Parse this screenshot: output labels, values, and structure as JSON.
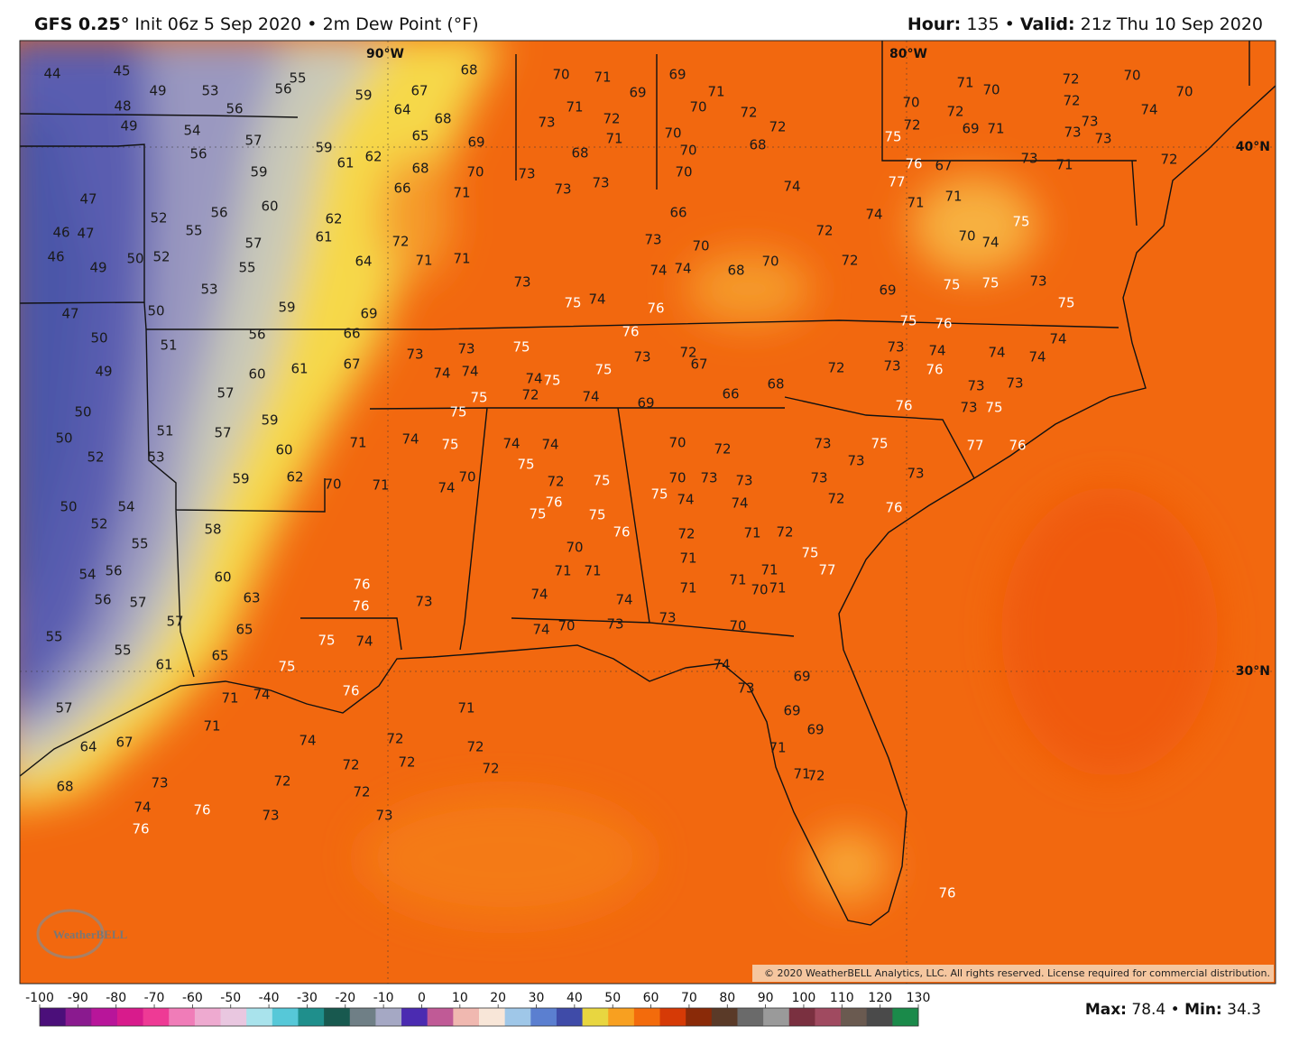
{
  "header": {
    "model": "GFS 0.25°",
    "init": "Init 06z 5 Sep 2020",
    "separator": "•",
    "field": "2m Dew Point (°F)",
    "hour_label": "Hour:",
    "hour": "135",
    "valid_label": "Valid:",
    "valid": "21z Thu 10 Sep 2020"
  },
  "map": {
    "lon_labels": [
      "90°W",
      "80°W"
    ],
    "lat_labels": [
      "40°N",
      "30°N"
    ],
    "logo": "WeatherBELL",
    "copyright": "© 2020 WeatherBELL Analytics, LLC. All rights reserved. License required for commercial distribution.",
    "stations": {
      "west": [
        44,
        45,
        49,
        53,
        48,
        49,
        54,
        56,
        57,
        56,
        59,
        47,
        52,
        56,
        60,
        46,
        47,
        55,
        57,
        46,
        49,
        50,
        52,
        55,
        53,
        47,
        50,
        59,
        50,
        51,
        56,
        49,
        60,
        61,
        57,
        50,
        51,
        57,
        59,
        50,
        60,
        52,
        53,
        59,
        62,
        50,
        54,
        52,
        58,
        55,
        54,
        56,
        60,
        56,
        57,
        63,
        57,
        65,
        55,
        55,
        61,
        65,
        57,
        67,
        64,
        68
      ],
      "midwest": [
        55,
        56,
        59,
        59,
        61,
        62,
        62,
        61,
        64,
        67,
        64,
        68,
        65,
        68,
        69,
        68,
        70,
        66,
        71,
        72,
        71,
        71,
        69,
        66,
        67,
        73,
        73,
        74,
        74,
        75,
        72,
        70,
        71,
        69,
        71,
        73,
        72,
        71,
        68,
        73,
        73,
        73,
        69,
        71,
        70,
        72,
        70,
        72,
        70,
        68,
        70,
        66,
        73,
        70,
        74,
        74,
        68,
        70,
        73,
        75,
        74,
        76,
        76,
        73,
        75,
        72,
        67,
        66,
        68,
        69,
        74,
        75,
        74,
        75,
        75,
        75,
        74,
        74,
        70,
        71,
        71,
        70
      ],
      "southeast": [
        74,
        74,
        75,
        72,
        75,
        76,
        75,
        75,
        76,
        70,
        71,
        71,
        74,
        74,
        70,
        72,
        70,
        73,
        73,
        75,
        74,
        74,
        72,
        71,
        72,
        71,
        71,
        71,
        71,
        70,
        71,
        75,
        77,
        73,
        73,
        75,
        73,
        72,
        73,
        76,
        76,
        77,
        76,
        73,
        74,
        74,
        74,
        73,
        76,
        73,
        73,
        73,
        75,
        74,
        72,
        75,
        76,
        75,
        75,
        73,
        75,
        69,
        70,
        74,
        75,
        72,
        72,
        74,
        74,
        71,
        77,
        71
      ],
      "northeast": [
        71,
        70,
        72,
        70,
        72,
        72,
        69,
        71,
        73,
        73,
        73,
        74,
        70,
        72,
        71,
        73,
        67,
        76,
        72,
        75,
        70
      ],
      "gulf": [
        75,
        74,
        76,
        76,
        73,
        74,
        70,
        73,
        73,
        70,
        74,
        73,
        69,
        69,
        69,
        71,
        71,
        72,
        76,
        75,
        71,
        71,
        74,
        74,
        72,
        72,
        72,
        72,
        71,
        72,
        72,
        72,
        73,
        73,
        76,
        73,
        74,
        76,
        76
      ]
    }
  },
  "colorbar": {
    "ticks": [
      -100,
      -90,
      -80,
      -70,
      -60,
      -50,
      -40,
      -30,
      -20,
      -10,
      0,
      10,
      20,
      30,
      40,
      50,
      60,
      70,
      80,
      90,
      100,
      110,
      120,
      130
    ],
    "colors": [
      "#4b0f7a",
      "#8a1a8f",
      "#b8159a",
      "#d81b8c",
      "#ee3a95",
      "#f07cb8",
      "#eeaad0",
      "#e9c7e0",
      "#a9e3ec",
      "#56c8d8",
      "#1f8f8c",
      "#18594f",
      "#6f7f86",
      "#a5a8c4",
      "#4b2bb1",
      "#c05a96",
      "#f0b8b0",
      "#f8e6d8",
      "#9fc7e8",
      "#5b7fd0",
      "#3f4ba8",
      "#e8d640",
      "#f8a020",
      "#f36b0c",
      "#d63a06",
      "#8a2a08",
      "#5a3a28",
      "#6a6a6a",
      "#9a9a9a",
      "#7a3040",
      "#a04a60",
      "#6a5a50",
      "#4a4a4a",
      "#1a8a4a"
    ],
    "max_label": "Max:",
    "max": 78.4,
    "separator": "•",
    "min_label": "Min:",
    "min": 34.3
  }
}
